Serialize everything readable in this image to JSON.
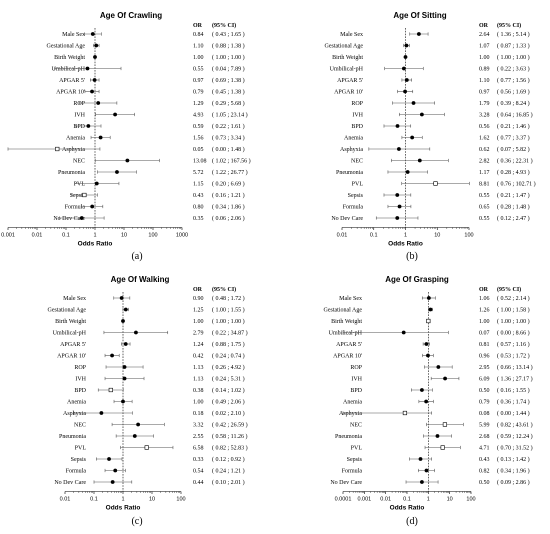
{
  "chart_data": [
    {
      "type": "forest",
      "panel_label": "(a)",
      "title": "Age Of Crawling",
      "xlabel": "Odds Ratio",
      "xscale": "log",
      "xlim": [
        0.001,
        1000
      ],
      "xticks": [
        "0.001",
        "0.01",
        "0.1",
        "1",
        "10",
        "100",
        "1000"
      ],
      "header": {
        "or": "OR",
        "ci": "(95% CI)"
      },
      "reference_line": 1,
      "rows": [
        {
          "label": "Male Sex",
          "or": 0.84,
          "lo": 0.43,
          "hi": 1.65,
          "ci_text": "( 0.43 ; 1.65 )",
          "marker": "filled"
        },
        {
          "label": "Gestational Age",
          "or": 1.1,
          "lo": 0.88,
          "hi": 1.38,
          "ci_text": "( 0.88 ; 1.38 )",
          "marker": "filled"
        },
        {
          "label": "Birth Weight",
          "or": 1.0,
          "lo": 1.0,
          "hi": 1.0,
          "ci_text": "( 1.00 ; 1.00 )",
          "marker": "filled"
        },
        {
          "label": "Umbilical-pH",
          "or": 0.55,
          "or_text": "0.55",
          "lo": 0.04,
          "hi": 7.89,
          "ci_text": "( 0.04 ; 7.89 )",
          "marker": "filled"
        },
        {
          "label": "APGAR 5'",
          "or": 0.97,
          "lo": 0.69,
          "hi": 1.38,
          "ci_text": "( 0.69 ; 1.38 )",
          "marker": "filled"
        },
        {
          "label": "APGAR 10'",
          "or": 0.79,
          "lo": 0.45,
          "hi": 1.38,
          "ci_text": "( 0.45 ; 1.38 )",
          "marker": "filled"
        },
        {
          "label": "ROP",
          "or": 1.29,
          "lo": 0.29,
          "hi": 5.68,
          "ci_text": "( 0.29 ; 5.68 )",
          "marker": "filled"
        },
        {
          "label": "IVH",
          "or": 4.93,
          "lo": 1.05,
          "hi": 23.14,
          "ci_text": "( 1.05 ; 23.14 )",
          "marker": "filled"
        },
        {
          "label": "BPD",
          "or": 0.59,
          "lo": 0.22,
          "hi": 1.61,
          "ci_text": "( 0.22 ; 1.61 )",
          "marker": "filled"
        },
        {
          "label": "Anemia",
          "or": 1.56,
          "lo": 0.73,
          "hi": 3.34,
          "ci_text": "( 0.73 ; 3.34 )",
          "marker": "filled"
        },
        {
          "label": "Asphyxia",
          "or": 0.05,
          "lo": 0.0,
          "hi": 1.48,
          "ci_text": "( 0.00 ; 1.48 )",
          "marker": "open"
        },
        {
          "label": "NEC",
          "or": 13.08,
          "lo": 1.02,
          "hi": 167.56,
          "ci_text": "( 1.02 ; 167.56 )",
          "marker": "filled"
        },
        {
          "label": "Pneumonia",
          "or": 5.72,
          "lo": 1.22,
          "hi": 26.77,
          "ci_text": "( 1.22 ; 26.77 )",
          "marker": "filled"
        },
        {
          "label": "PVL",
          "or": 1.15,
          "lo": 0.2,
          "hi": 6.69,
          "ci_text": "( 0.20 ; 6.69 )",
          "marker": "filled"
        },
        {
          "label": "Sepsis",
          "or": 0.43,
          "lo": 0.16,
          "hi": 1.21,
          "ci_text": "( 0.16 ; 1.21 )",
          "marker": "open"
        },
        {
          "label": "Formula",
          "or": 0.8,
          "lo": 0.34,
          "hi": 1.86,
          "ci_text": "( 0.34 ; 1.86 )",
          "marker": "filled"
        },
        {
          "label": "No Dev Care",
          "or": 0.35,
          "lo": 0.06,
          "hi": 2.06,
          "ci_text": "( 0.06 ; 2.06 )",
          "marker": "filled"
        }
      ]
    },
    {
      "type": "forest",
      "panel_label": "(b)",
      "title": "Age Of Sitting",
      "xlabel": "Odds Ratio",
      "xscale": "log",
      "xlim": [
        0.01,
        100
      ],
      "xticks": [
        "0.01",
        "0.1",
        "1",
        "10",
        "100"
      ],
      "header": {
        "or": "OR",
        "ci": "(95% CI)"
      },
      "reference_line": 1,
      "rows": [
        {
          "label": "Male Sex",
          "or": 2.64,
          "lo": 1.36,
          "hi": 5.14,
          "ci_text": "( 1.36 ; 5.14 )",
          "marker": "filled"
        },
        {
          "label": "Gestational Age",
          "or": 1.07,
          "lo": 0.87,
          "hi": 1.33,
          "ci_text": "( 0.87 ; 1.33 )",
          "marker": "filled"
        },
        {
          "label": "Birth Weight",
          "or": 1.0,
          "lo": 1.0,
          "hi": 1.0,
          "ci_text": "( 1.00 ; 1.00 )",
          "marker": "filled"
        },
        {
          "label": "Umbilical-pH",
          "or": 0.89,
          "lo": 0.22,
          "hi": 3.63,
          "ci_text": "( 0.22 ; 3.63 )",
          "marker": "filled"
        },
        {
          "label": "APGAR 5'",
          "or": 1.1,
          "lo": 0.77,
          "hi": 1.56,
          "ci_text": "( 0.77 ; 1.56 )",
          "marker": "filled"
        },
        {
          "label": "APGAR 10'",
          "or": 0.97,
          "lo": 0.56,
          "hi": 1.69,
          "ci_text": "( 0.56 ; 1.69 )",
          "marker": "filled"
        },
        {
          "label": "ROP",
          "or": 1.79,
          "lo": 0.39,
          "hi": 8.24,
          "ci_text": "( 0.39 ; 8.24 )",
          "marker": "filled"
        },
        {
          "label": "IVH",
          "or": 3.28,
          "lo": 0.64,
          "hi": 16.85,
          "ci_text": "( 0.64 ; 16.85 )",
          "marker": "filled"
        },
        {
          "label": "BPD",
          "or": 0.56,
          "lo": 0.21,
          "hi": 1.46,
          "ci_text": "( 0.21 ; 1.46 )",
          "marker": "filled"
        },
        {
          "label": "Anemia",
          "or": 1.62,
          "lo": 0.77,
          "hi": 3.37,
          "ci_text": "( 0.77 ; 3.37 )",
          "marker": "filled"
        },
        {
          "label": "Asphyxia",
          "or": 0.62,
          "lo": 0.07,
          "hi": 5.82,
          "ci_text": "( 0.07 ; 5.82 )",
          "marker": "filled"
        },
        {
          "label": "NEC",
          "or": 2.82,
          "lo": 0.36,
          "hi": 22.31,
          "ci_text": "( 0.36 ; 22.31 )",
          "marker": "filled"
        },
        {
          "label": "Pneumonia",
          "or": 1.17,
          "lo": 0.28,
          "hi": 4.93,
          "ci_text": "( 0.28 ; 4.93 )",
          "marker": "filled"
        },
        {
          "label": "PVL",
          "or": 8.81,
          "lo": 0.76,
          "hi": 102.71,
          "ci_text": "( 0.76 ; 102.71 )",
          "marker": "open"
        },
        {
          "label": "Sepsis",
          "or": 0.55,
          "lo": 0.21,
          "hi": 1.47,
          "ci_text": "( 0.21 ; 1.47 )",
          "marker": "filled"
        },
        {
          "label": "Formula",
          "or": 0.65,
          "lo": 0.28,
          "hi": 1.48,
          "ci_text": "( 0.28 ; 1.48 )",
          "marker": "filled"
        },
        {
          "label": "No Dev Care",
          "or": 0.55,
          "lo": 0.12,
          "hi": 2.47,
          "ci_text": "( 0.12 ; 2.47 )",
          "marker": "filled"
        }
      ]
    },
    {
      "type": "forest",
      "panel_label": "(c)",
      "title": "Age Of Walking",
      "xlabel": "Odds Ratio",
      "xscale": "log",
      "xlim": [
        0.01,
        100
      ],
      "xticks": [
        "0.01",
        "0.1",
        "1",
        "10",
        "100"
      ],
      "header": {
        "or": "OR",
        "ci": "(95% CI)"
      },
      "reference_line": 1,
      "rows": [
        {
          "label": "Male Sex",
          "or": 0.9,
          "or_text": "0.90",
          "lo": 0.48,
          "hi": 1.72,
          "ci_text": "( 0.48 ; 1.72 )",
          "marker": "filled"
        },
        {
          "label": "Gestational Age",
          "or": 1.25,
          "lo": 1.0,
          "hi": 1.55,
          "ci_text": "( 1.00 ; 1.55 )",
          "marker": "filled"
        },
        {
          "label": "Birth Weight",
          "or": 1.0,
          "lo": 1.0,
          "hi": 1.0,
          "ci_text": "( 1.00 ; 1.00 )",
          "marker": "filled"
        },
        {
          "label": "Umbilical-pH",
          "or": 2.79,
          "lo": 0.22,
          "hi": 34.87,
          "ci_text": "( 0.22 ; 34.87 )",
          "marker": "filled"
        },
        {
          "label": "APGAR 5'",
          "or": 1.24,
          "lo": 0.88,
          "hi": 1.75,
          "ci_text": "( 0.88 ; 1.75 )",
          "marker": "filled"
        },
        {
          "label": "APGAR 10'",
          "or": 0.42,
          "lo": 0.24,
          "hi": 0.74,
          "ci_text": "( 0.24 ; 0.74 )",
          "marker": "filled"
        },
        {
          "label": "ROP",
          "or": 1.13,
          "lo": 0.26,
          "hi": 4.92,
          "ci_text": "( 0.26 ; 4.92 )",
          "marker": "filled"
        },
        {
          "label": "IVH",
          "or": 1.13,
          "lo": 0.24,
          "hi": 5.31,
          "ci_text": "( 0.24 ; 5.31 )",
          "marker": "filled"
        },
        {
          "label": "BPD",
          "or": 0.38,
          "lo": 0.14,
          "hi": 1.02,
          "ci_text": "( 0.14 ; 1.02 )",
          "marker": "open"
        },
        {
          "label": "Anemia",
          "or": 1.0,
          "or_text": "1.00",
          "lo": 0.49,
          "hi": 2.06,
          "ci_text": "( 0.49 ; 2.06 )",
          "marker": "filled"
        },
        {
          "label": "Asphyxia",
          "or": 0.18,
          "lo": 0.02,
          "hi": 2.1,
          "ci_text": "( 0.02 ; 2.10 )",
          "marker": "filled"
        },
        {
          "label": "NEC",
          "or": 3.32,
          "lo": 0.42,
          "hi": 26.59,
          "ci_text": "( 0.42 ; 26.59 )",
          "marker": "filled"
        },
        {
          "label": "Pneumonia",
          "or": 2.55,
          "lo": 0.58,
          "hi": 11.26,
          "ci_text": "( 0.58 ; 11.26 )",
          "marker": "filled"
        },
        {
          "label": "PVL",
          "or": 6.58,
          "lo": 0.82,
          "hi": 52.83,
          "ci_text": "( 0.82 ; 52.83 )",
          "marker": "open"
        },
        {
          "label": "Sepsis",
          "or": 0.33,
          "lo": 0.12,
          "hi": 0.92,
          "ci_text": "( 0.12 ; 0.92 )",
          "marker": "filled"
        },
        {
          "label": "Formula",
          "or": 0.54,
          "lo": 0.24,
          "hi": 1.21,
          "ci_text": "( 0.24 ; 1.21 )",
          "marker": "filled"
        },
        {
          "label": "No Dev Care",
          "or": 0.44,
          "lo": 0.1,
          "hi": 2.01,
          "ci_text": "( 0.10 ; 2.01 )",
          "marker": "filled"
        }
      ]
    },
    {
      "type": "forest",
      "panel_label": "(d)",
      "title": "Age Of Grasping",
      "xlabel": "Odds Ratio",
      "xscale": "log",
      "xlim": [
        0.0001,
        100
      ],
      "xticks": [
        "0.0001",
        "0.001",
        "0.01",
        "0.1",
        "1",
        "10",
        "100"
      ],
      "header": {
        "or": "OR",
        "ci": "(95% CI)"
      },
      "reference_line": 1,
      "rows": [
        {
          "label": "Male Sex",
          "or": 1.06,
          "lo": 0.52,
          "hi": 2.14,
          "ci_text": "( 0.52 ; 2.14 )",
          "marker": "filled"
        },
        {
          "label": "Gestational Age",
          "or": 1.26,
          "lo": 1.0,
          "hi": 1.58,
          "ci_text": "( 1.00 ; 1.58 )",
          "marker": "filled"
        },
        {
          "label": "Birth Weight",
          "or": 1.0,
          "lo": 1.0,
          "hi": 1.0,
          "ci_text": "( 1.00 ; 1.00 )",
          "marker": "open"
        },
        {
          "label": "Umbilical-pH",
          "or": 0.07,
          "lo": 0.0,
          "hi": 8.66,
          "ci_text": "( 0.00 ; 8.66 )",
          "marker": "filled"
        },
        {
          "label": "APGAR 5'",
          "or": 0.81,
          "lo": 0.57,
          "hi": 1.16,
          "ci_text": "( 0.57 ; 1.16 )",
          "marker": "filled"
        },
        {
          "label": "APGAR 10'",
          "or": 0.96,
          "lo": 0.53,
          "hi": 1.72,
          "ci_text": "( 0.53 ; 1.72 )",
          "marker": "filled"
        },
        {
          "label": "ROP",
          "or": 2.95,
          "lo": 0.66,
          "hi": 13.14,
          "ci_text": "( 0.66 ; 13.14 )",
          "marker": "filled"
        },
        {
          "label": "IVH",
          "or": 6.09,
          "lo": 1.36,
          "hi": 27.17,
          "ci_text": "( 1.36 ; 27.17 )",
          "marker": "filled"
        },
        {
          "label": "BPD",
          "or": 0.5,
          "or_text": "0.50",
          "lo": 0.16,
          "hi": 1.55,
          "ci_text": "( 0.16 ; 1.55 )",
          "marker": "filled"
        },
        {
          "label": "Anemia",
          "or": 0.79,
          "lo": 0.36,
          "hi": 1.74,
          "ci_text": "( 0.36 ; 1.74 )",
          "marker": "filled"
        },
        {
          "label": "Asphyxia",
          "or": 0.08,
          "lo": 0.0,
          "hi": 1.44,
          "ci_text": "( 0.00 ; 1.44 )",
          "marker": "open"
        },
        {
          "label": "NEC",
          "or": 5.99,
          "lo": 0.82,
          "hi": 43.61,
          "ci_text": "( 0.82 ; 43.61 )",
          "marker": "open"
        },
        {
          "label": "Pneumonia",
          "or": 2.68,
          "lo": 0.59,
          "hi": 12.24,
          "ci_text": "( 0.59 ; 12.24 )",
          "marker": "filled"
        },
        {
          "label": "PVL",
          "or": 4.71,
          "lo": 0.7,
          "hi": 31.52,
          "ci_text": "( 0.70 ; 31.52 )",
          "marker": "open"
        },
        {
          "label": "Sepsis",
          "or": 0.43,
          "lo": 0.13,
          "hi": 1.42,
          "ci_text": "( 0.13 ; 1.42 )",
          "marker": "filled"
        },
        {
          "label": "Formula",
          "or": 0.82,
          "lo": 0.34,
          "hi": 1.96,
          "ci_text": "( 0.34 ; 1.96 )",
          "marker": "filled"
        },
        {
          "label": "No Dev Care",
          "or": 0.5,
          "or_text": "0.50",
          "lo": 0.09,
          "hi": 2.86,
          "ci_text": "( 0.09 ; 2.86 )",
          "marker": "filled"
        }
      ]
    }
  ]
}
